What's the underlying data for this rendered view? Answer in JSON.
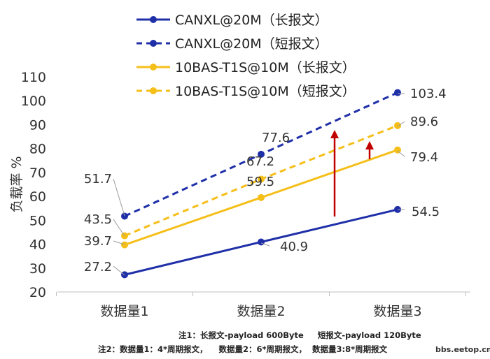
{
  "chart_data": {
    "type": "line",
    "ylabel": "负载率 %",
    "ylim": [
      20,
      110
    ],
    "yticks": [
      20,
      30,
      40,
      50,
      60,
      70,
      80,
      90,
      100,
      110
    ],
    "categories": [
      "数据量1",
      "数据量2",
      "数据量3"
    ],
    "legend_position": "top",
    "grid": false,
    "series": [
      {
        "name": "CANXL@20M（长报文）",
        "values": [
          27.2,
          40.9,
          54.5
        ],
        "color": "#1f2fa8",
        "dash": false
      },
      {
        "name": "CANXL@20M（短报文）",
        "values": [
          51.7,
          77.6,
          103.4
        ],
        "color": "#1f2fa8",
        "dash": true
      },
      {
        "name": "10BAS-T1S@10M（长报文）",
        "values": [
          39.7,
          59.5,
          79.4
        ],
        "color": "#f5bf1a",
        "dash": false
      },
      {
        "name": "10BAS-T1S@10M（短报文）",
        "values": [
          43.5,
          67.2,
          89.6
        ],
        "color": "#f5bf1a",
        "dash": true
      }
    ],
    "data_labels": [
      "27.2",
      "51.7",
      "43.5",
      "39.7",
      "40.9",
      "77.6",
      "67.2",
      "59.5",
      "54.5",
      "103.4",
      "89.6",
      "79.4"
    ],
    "annotation_color": "#c00000"
  },
  "notes": {
    "note1": "注1：长报文-payload 600Byte     短报文-payload 120Byte",
    "note2": "注2：数据量1：4*周期报文，    数据量2：6*周期报文，  数据量3:8*周期报文"
  },
  "watermark": "bbs.eetop.cn"
}
